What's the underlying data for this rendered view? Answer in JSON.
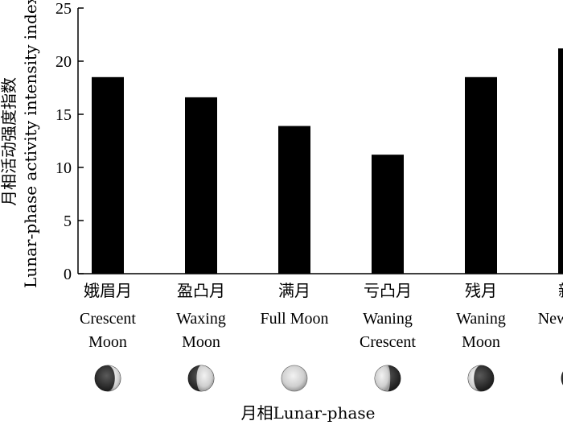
{
  "chart_data": {
    "type": "bar",
    "ylabel": "月相活动强度指数 Lunar-phase activity intensity index",
    "ylabel_lines": [
      "月相活动强度指数",
      "Lunar-phase activity intensity index"
    ],
    "xlabel": "月相Lunar-phase",
    "ylim": [
      0,
      25
    ],
    "yticks": [
      0,
      5,
      10,
      15,
      20,
      25
    ],
    "grid": false,
    "bar_color": "#000000",
    "categories": [
      {
        "zh": "娥眉月",
        "en": [
          "Crescent",
          "Moon"
        ],
        "moon_icon": "waxing-crescent-moon-icon"
      },
      {
        "zh": "盈凸月",
        "en": [
          "Waxing",
          "Moon"
        ],
        "moon_icon": "waxing-gibbous-moon-icon"
      },
      {
        "zh": "满月",
        "en": [
          "Full Moon"
        ],
        "moon_icon": "full-moon-icon"
      },
      {
        "zh": "亏凸月",
        "en": [
          "Waning",
          "Crescent"
        ],
        "moon_icon": "waning-gibbous-moon-icon"
      },
      {
        "zh": "残月",
        "en": [
          "Waning",
          "Moon"
        ],
        "moon_icon": "waning-crescent-moon-icon"
      },
      {
        "zh": "新月",
        "en": [
          "New Moon"
        ],
        "moon_icon": "new-moon-icon"
      }
    ],
    "values": [
      18.5,
      16.6,
      13.9,
      11.2,
      18.5,
      21.2
    ]
  }
}
